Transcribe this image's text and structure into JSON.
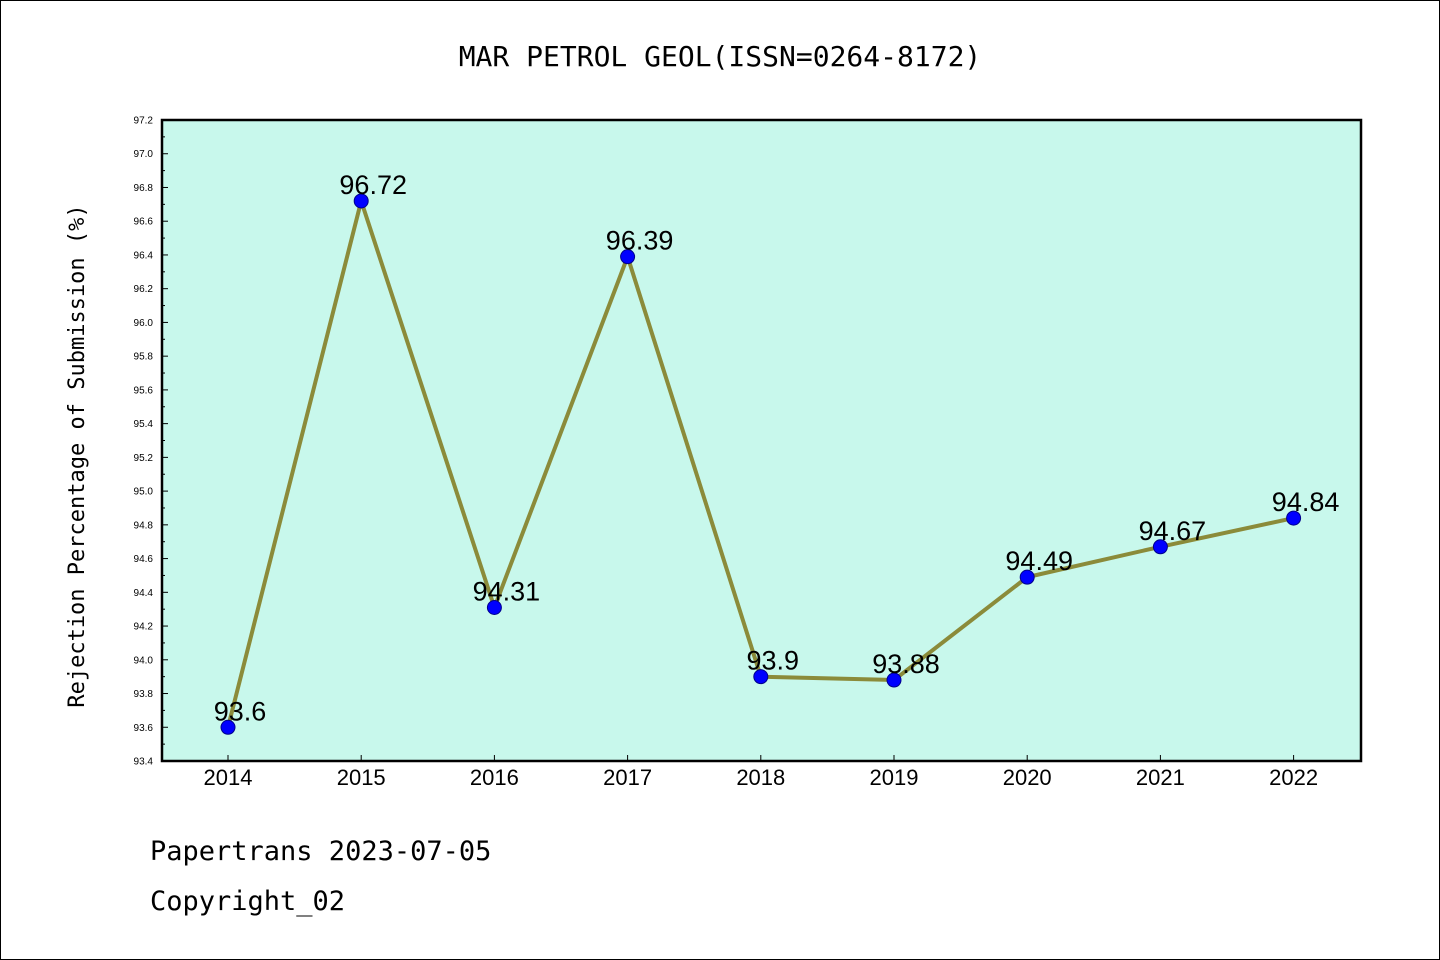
{
  "chart_data": {
    "type": "line",
    "title": "MAR PETROL GEOL(ISSN=0264-8172)",
    "xlabel": "",
    "ylabel": "Rejection Percentage of Submission (%)",
    "categories": [
      "2014",
      "2015",
      "2016",
      "2017",
      "2018",
      "2019",
      "2020",
      "2021",
      "2022"
    ],
    "values": [
      93.6,
      96.72,
      94.31,
      96.39,
      93.9,
      93.88,
      94.49,
      94.67,
      94.84
    ],
    "data_labels": [
      "93.6",
      "96.72",
      "94.31",
      "96.39",
      "93.9",
      "93.88",
      "94.49",
      "94.67",
      "94.84"
    ],
    "ylim": [
      93.4,
      97.2
    ],
    "yticks": [
      "93.4",
      "93.6",
      "93.8",
      "94.0",
      "94.2",
      "94.4",
      "94.6",
      "94.8",
      "95.0",
      "95.2",
      "95.4",
      "95.6",
      "95.8",
      "96.0",
      "96.2",
      "96.4",
      "96.6",
      "96.8",
      "97.0",
      "97.2"
    ],
    "grid": false,
    "colors": {
      "line": "#8b8b3a",
      "marker": "#0000ff",
      "plot_background": "#c8f8ec"
    }
  },
  "footer": {
    "line1": "Papertrans 2023-07-05",
    "line2": "Copyright_02"
  }
}
